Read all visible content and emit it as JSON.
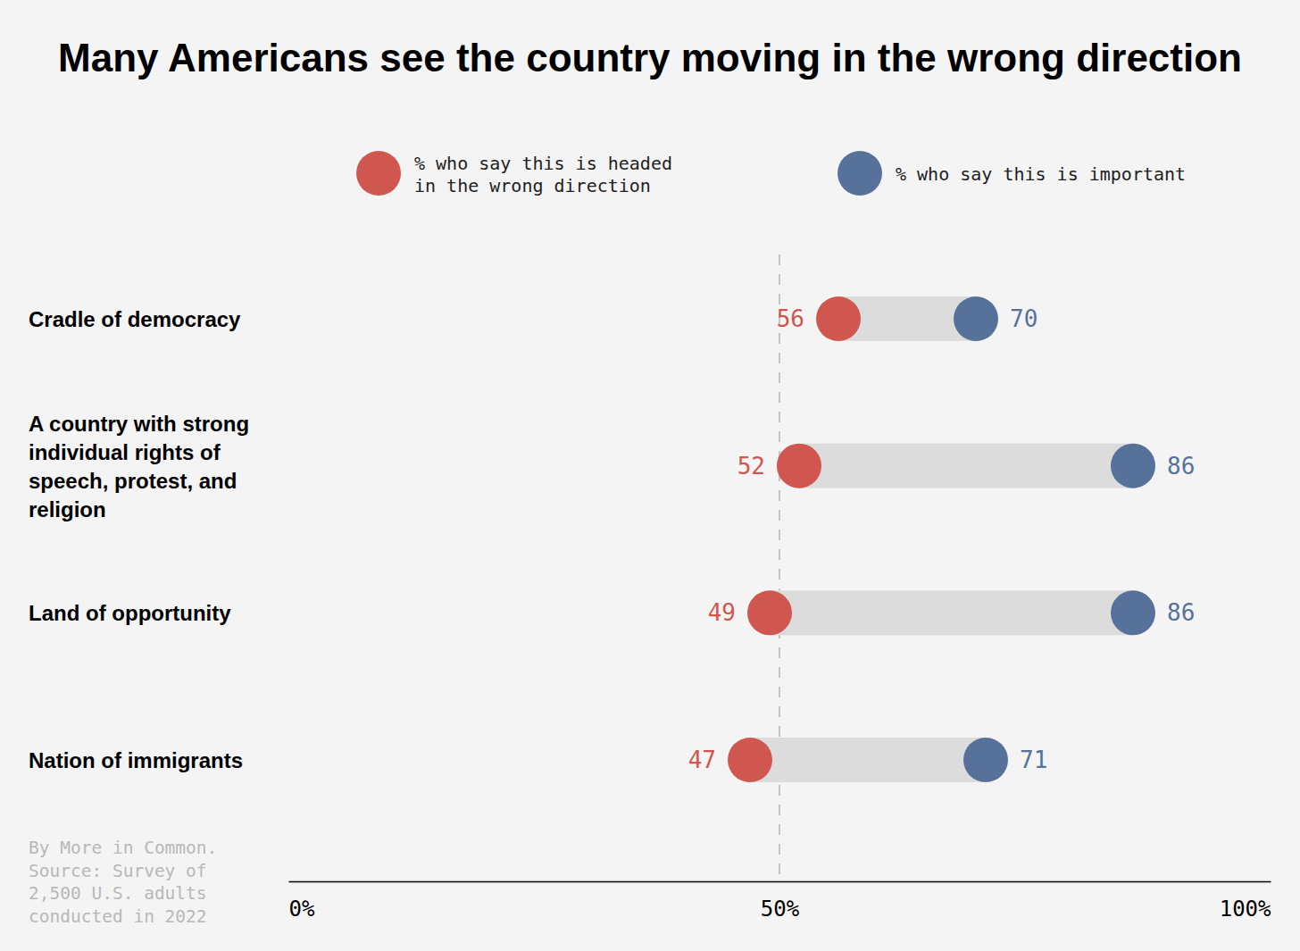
{
  "chart_data": {
    "type": "dumbbell",
    "title": "Many Americans see the country moving in the wrong direction",
    "orientation": "horizontal",
    "categories": [
      "Cradle of democracy",
      "A country with strong individual rights of speech, protest, and religion",
      "Land of opportunity",
      "Nation of immigrants"
    ],
    "series": [
      {
        "name": "% who say this is headed in the wrong direction",
        "color": "#d0574f",
        "values": [
          56,
          52,
          49,
          47
        ]
      },
      {
        "name": "% who say this is important",
        "color": "#56729a",
        "values": [
          70,
          86,
          86,
          71
        ]
      }
    ],
    "xlim": [
      0,
      100
    ],
    "xticks": [
      {
        "value": 0,
        "label": "0%"
      },
      {
        "value": 50,
        "label": "50%"
      },
      {
        "value": 100,
        "label": "100%"
      }
    ],
    "grid": true,
    "legend": "top",
    "data_labels": true,
    "note": [
      "By More in Common.",
      "Source: Survey of",
      "2,500 U.S. adults",
      "conducted in 2022"
    ]
  }
}
